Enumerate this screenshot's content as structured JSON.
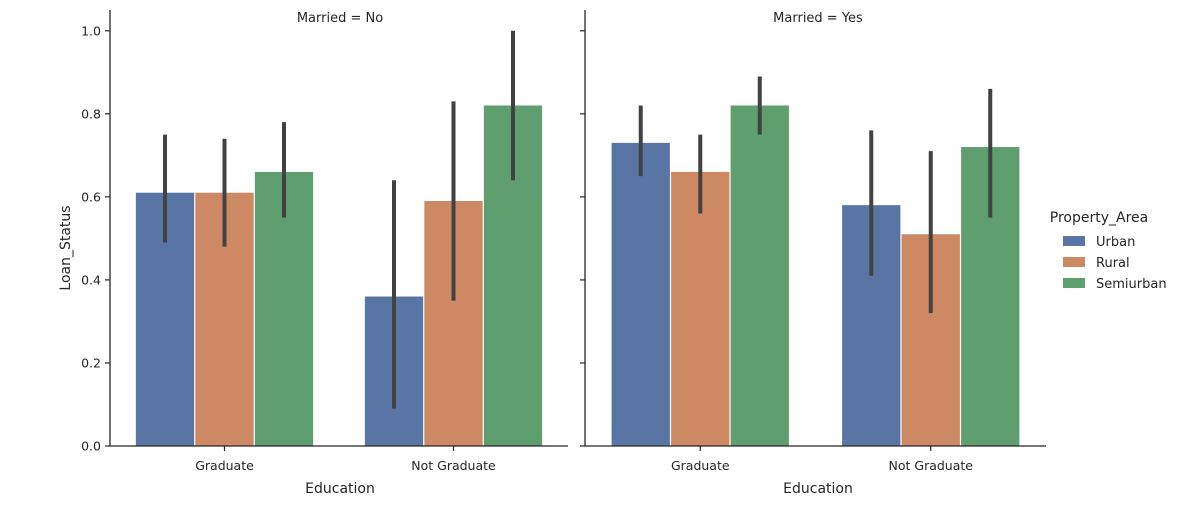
{
  "chart_data": [
    {
      "type": "bar",
      "title": "Married = No",
      "xlabel": "Education",
      "ylabel": "Loan_Status",
      "ylim": [
        0,
        1.05
      ],
      "yticks": [
        "0.0",
        "0.2",
        "0.4",
        "0.6",
        "0.8",
        "1.0"
      ],
      "categories": [
        "Graduate",
        "Not Graduate"
      ],
      "series": [
        {
          "name": "Urban",
          "values": [
            0.61,
            0.36
          ],
          "ci_low": [
            0.49,
            0.09
          ],
          "ci_high": [
            0.75,
            0.64
          ]
        },
        {
          "name": "Rural",
          "values": [
            0.61,
            0.59
          ],
          "ci_low": [
            0.48,
            0.35
          ],
          "ci_high": [
            0.74,
            0.83
          ]
        },
        {
          "name": "Semiurban",
          "values": [
            0.66,
            0.82
          ],
          "ci_low": [
            0.55,
            0.64
          ],
          "ci_high": [
            0.78,
            1.0
          ]
        }
      ]
    },
    {
      "type": "bar",
      "title": "Married = Yes",
      "xlabel": "Education",
      "ylabel": "",
      "ylim": [
        0,
        1.05
      ],
      "categories": [
        "Graduate",
        "Not Graduate"
      ],
      "series": [
        {
          "name": "Urban",
          "values": [
            0.73,
            0.58
          ],
          "ci_low": [
            0.65,
            0.41
          ],
          "ci_high": [
            0.82,
            0.76
          ]
        },
        {
          "name": "Rural",
          "values": [
            0.66,
            0.51
          ],
          "ci_low": [
            0.56,
            0.32
          ],
          "ci_high": [
            0.75,
            0.71
          ]
        },
        {
          "name": "Semiurban",
          "values": [
            0.82,
            0.72
          ],
          "ci_low": [
            0.75,
            0.55
          ],
          "ci_high": [
            0.89,
            0.86
          ]
        }
      ]
    }
  ],
  "legend": {
    "title": "Property_Area",
    "placement": "right",
    "entries": [
      "Urban",
      "Rural",
      "Semiurban"
    ]
  },
  "colors": {
    "Urban": "#5875a4",
    "Rural": "#cc8963",
    "Semiurban": "#5f9e6e",
    "errorbar": "#424242",
    "axis": "#262626"
  },
  "grid": false
}
